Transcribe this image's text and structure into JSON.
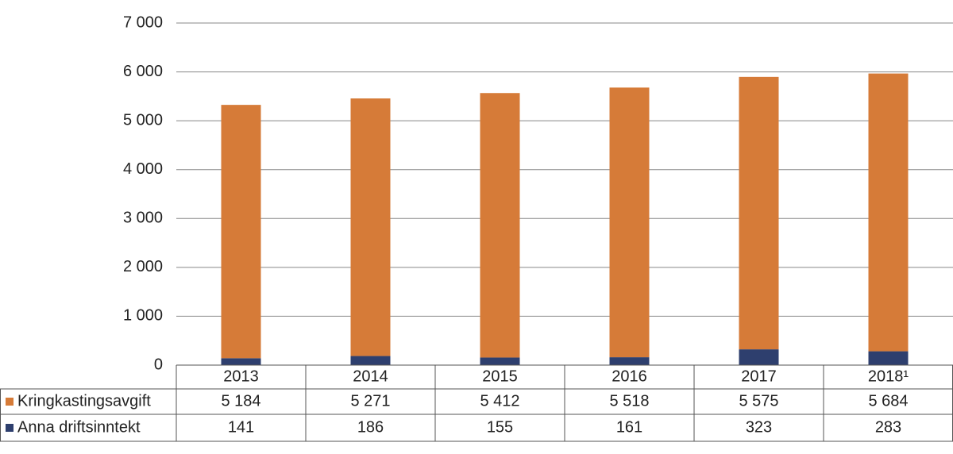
{
  "chart_data": {
    "type": "stacked_bar",
    "categories": [
      "2013",
      "2014",
      "2015",
      "2016",
      "2017",
      "2018¹"
    ],
    "series": [
      {
        "name": "Kringkastingsavgift",
        "color": "#d67b38",
        "values": [
          5184,
          5271,
          5412,
          5518,
          5575,
          5684
        ],
        "value_labels": [
          "5 184",
          "5 271",
          "5 412",
          "5 518",
          "5 575",
          "5 684"
        ]
      },
      {
        "name": "Anna driftsinntekt",
        "color": "#2e3f6e",
        "values": [
          141,
          186,
          155,
          161,
          323,
          283
        ]
      }
    ],
    "ylim": [
      0,
      7000
    ],
    "yticks": [
      0,
      {
        "value": 1000,
        "label": "1 000"
      },
      {
        "value": 2000,
        "label": "2 000"
      },
      {
        "value": 3000,
        "label": "3 000"
      },
      {
        "value": 4000,
        "label": "4 000"
      },
      {
        "value": 5000,
        "label": "5 000"
      },
      {
        "value": 6000,
        "label": "6 000"
      },
      {
        "value": 7000,
        "label": "7 000"
      }
    ],
    "grid": true
  }
}
